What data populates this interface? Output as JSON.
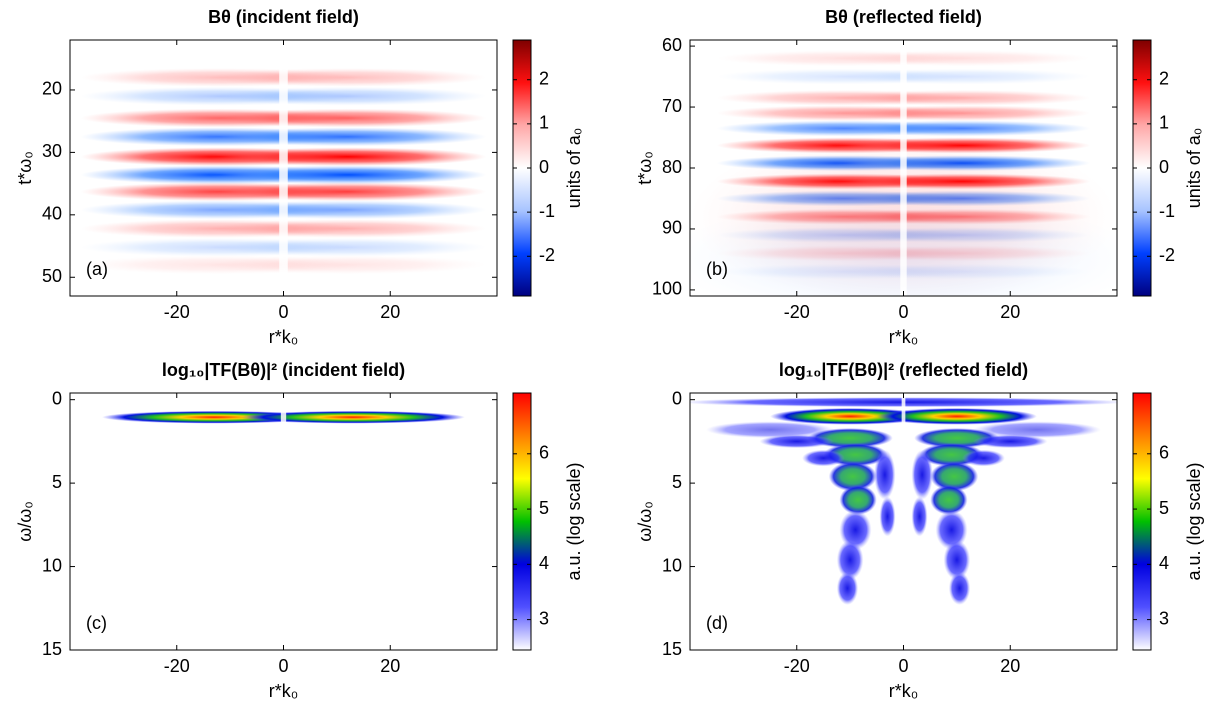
{
  "chart_data": [
    {
      "type": "heatmap",
      "title": "Bθ (incident field)",
      "panel_label": "(a)",
      "x_label": "r*k₀",
      "y_label": "t*ω₀",
      "xlim": [
        -40,
        40
      ],
      "xticks": [
        -20,
        0,
        20
      ],
      "ylim": [
        12,
        53
      ],
      "y_reversed": true,
      "yticks": [
        20,
        30,
        40,
        50
      ],
      "colorbar": {
        "label": "units of a₀",
        "lim": [
          -2.9,
          2.9
        ],
        "ticks": [
          -2,
          -1,
          0,
          1,
          2
        ],
        "colormap": [
          "#00007f",
          "#0040ff",
          "#a8c4ff",
          "#ffffff",
          "#ffa8a8",
          "#ff1010",
          "#7f0000"
        ]
      }
    },
    {
      "type": "heatmap",
      "title": "Bθ (reflected field)",
      "panel_label": "(b)",
      "x_label": "r*k₀",
      "y_label": "t*ω₀",
      "xlim": [
        -40,
        40
      ],
      "xticks": [
        -20,
        0,
        20
      ],
      "ylim": [
        59,
        101
      ],
      "y_reversed": true,
      "yticks": [
        60,
        70,
        80,
        90,
        100
      ],
      "colorbar": {
        "label": "units of a₀",
        "lim": [
          -2.9,
          2.9
        ],
        "ticks": [
          -2,
          -1,
          0,
          1,
          2
        ],
        "colormap": [
          "#00007f",
          "#0040ff",
          "#a8c4ff",
          "#ffffff",
          "#ffa8a8",
          "#ff1010",
          "#7f0000"
        ]
      }
    },
    {
      "type": "heatmap",
      "title": "log₁₀|TF(Bθ)|² (incident field)",
      "panel_label": "(c)",
      "x_label": "r*k₀",
      "y_label": "ω/ω₀",
      "xlim": [
        -40,
        40
      ],
      "xticks": [
        -20,
        0,
        20
      ],
      "ylim": [
        -0.4,
        15
      ],
      "y_reversed": true,
      "yticks": [
        0,
        5,
        10,
        15
      ],
      "colorbar": {
        "label": "a.u. (log scale)",
        "lim": [
          2.45,
          7.1
        ],
        "ticks": [
          3,
          4,
          5,
          6
        ],
        "colormap": [
          "#ffffff",
          "#5050ff",
          "#0000e0",
          "#00c000",
          "#ffff00",
          "#ff8000",
          "#ff0000"
        ]
      }
    },
    {
      "type": "heatmap",
      "title": "log₁₀|TF(Bθ)|² (reflected field)",
      "panel_label": "(d)",
      "x_label": "r*k₀",
      "y_label": "ω/ω₀",
      "xlim": [
        -40,
        40
      ],
      "xticks": [
        -20,
        0,
        20
      ],
      "ylim": [
        -0.4,
        15
      ],
      "y_reversed": true,
      "yticks": [
        0,
        5,
        10,
        15
      ],
      "colorbar": {
        "label": "a.u. (log scale)",
        "lim": [
          2.45,
          7.1
        ],
        "ticks": [
          3,
          4,
          5,
          6
        ],
        "colormap": [
          "#ffffff",
          "#5050ff",
          "#0000e0",
          "#00c000",
          "#ffff00",
          "#ff8000",
          "#ff0000"
        ]
      }
    }
  ]
}
